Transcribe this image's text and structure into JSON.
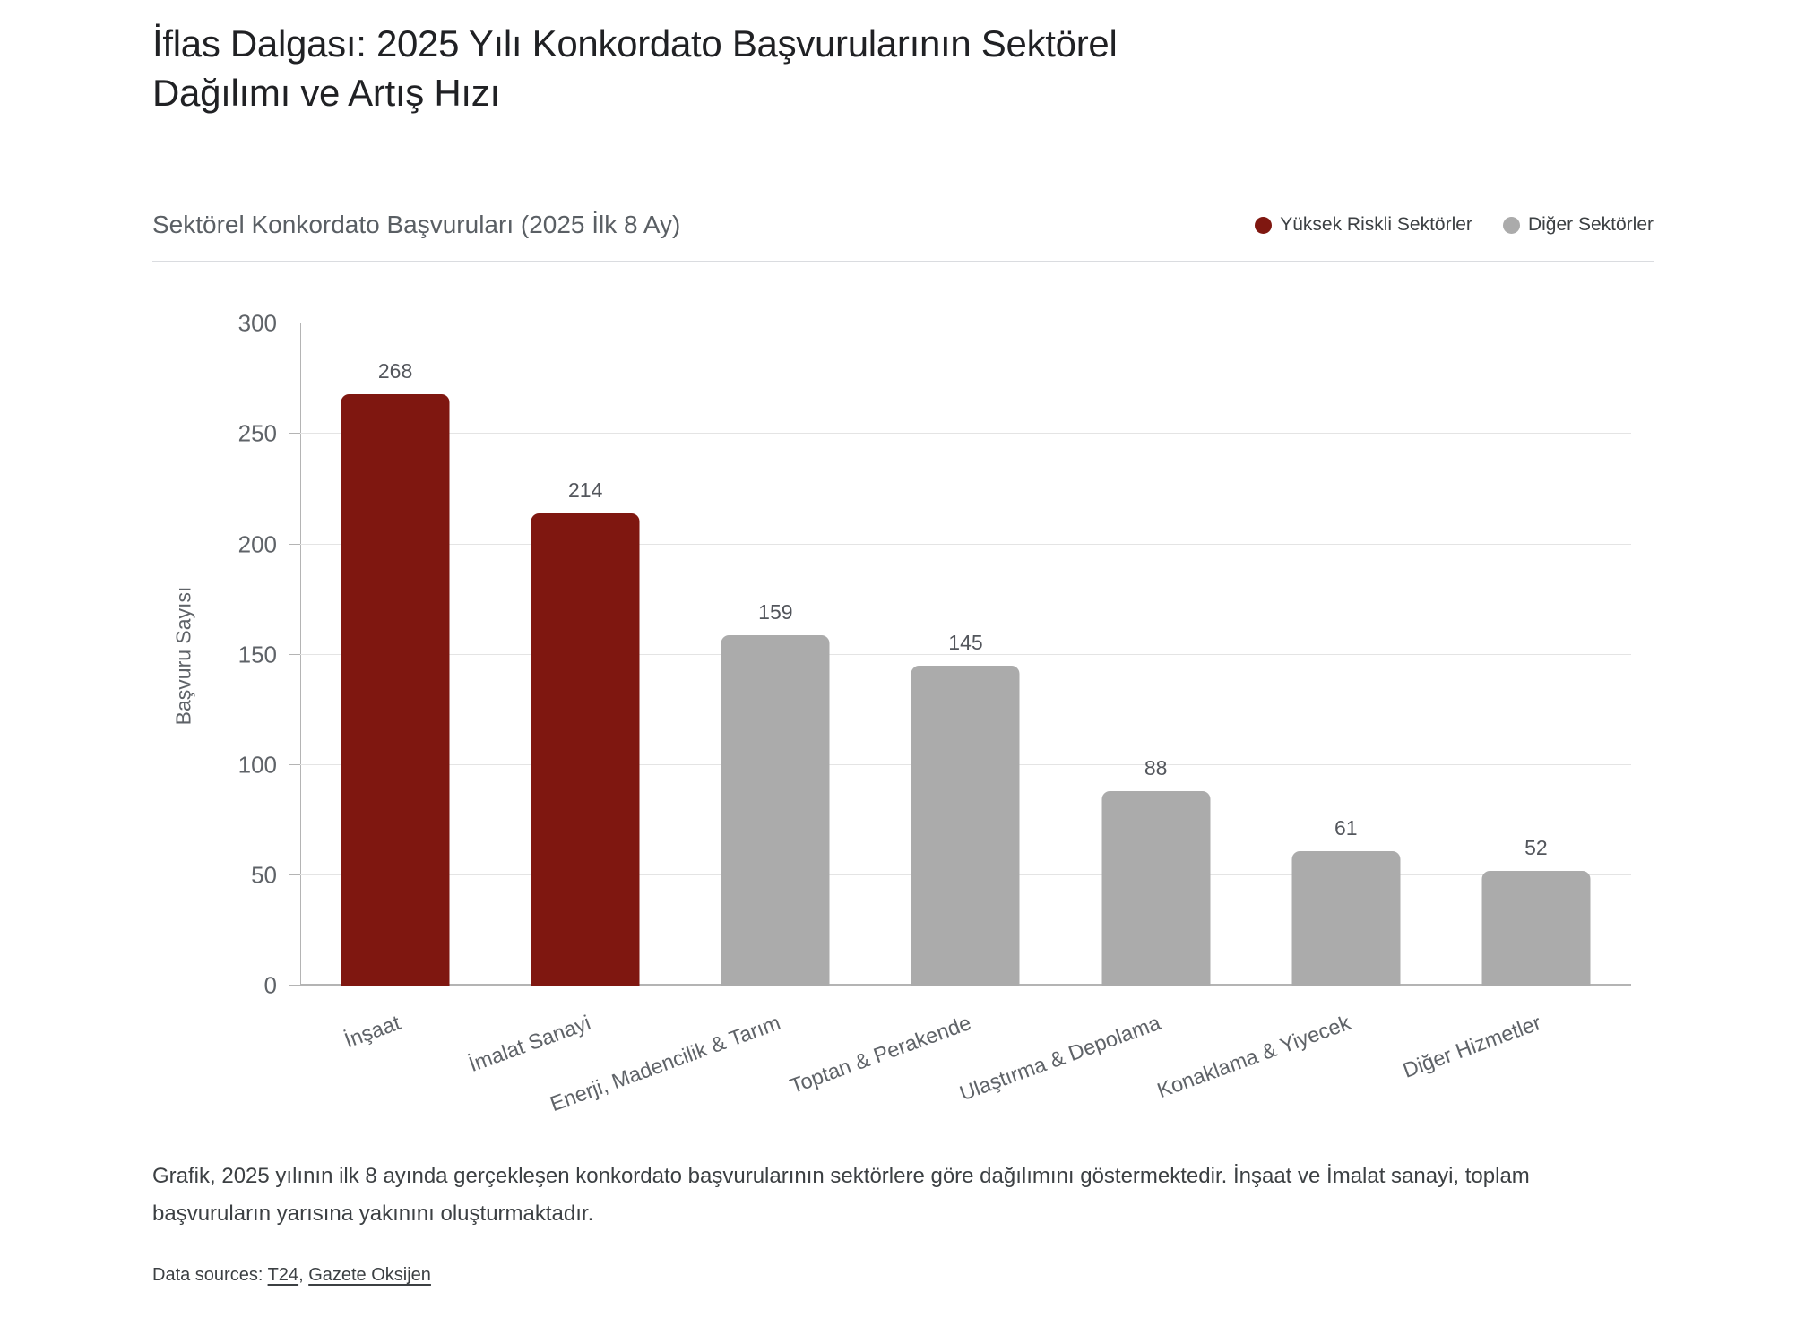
{
  "page": {
    "title": "İflas Dalgası: 2025 Yılı Konkordato Başvurularının Sektörel Dağılımı ve Artış Hızı",
    "caption": "Grafik, 2025 yılının ilk 8 ayında gerçekleşen konkordato başvurularının sektörlere göre dağılımını göstermektedir. İnşaat ve İmalat sanayi, toplam başvuruların yarısına yakınını oluşturmaktadır.",
    "sources": {
      "prefix": "Data sources: ",
      "separator": ", ",
      "links": [
        {
          "label": "T24"
        },
        {
          "label": "Gazete Oksijen"
        }
      ]
    }
  },
  "chart_data": {
    "type": "bar",
    "title": "Sektörel Konkordato Başvuruları (2025 İlk 8 Ay)",
    "categories": [
      "İnşaat",
      "İmalat Sanayi",
      "Enerji, Madencilik & Tarım",
      "Toptan & Perakende",
      "Ulaştırma & Depolama",
      "Konaklama & Yiyecek",
      "Diğer Hizmetler"
    ],
    "values": [
      268,
      214,
      159,
      145,
      88,
      61,
      52
    ],
    "groups": [
      "high-risk",
      "high-risk",
      "other",
      "other",
      "other",
      "other",
      "other"
    ],
    "series_colors": [
      "#7F1710",
      "#7F1710",
      "#ABABAB",
      "#ABABAB",
      "#ABABAB",
      "#ABABAB",
      "#ABABAB"
    ],
    "xlabel": "",
    "ylabel": "Başvuru Sayısı",
    "ylim": [
      0,
      300
    ],
    "yticks": [
      0,
      50,
      100,
      150,
      200,
      250,
      300
    ],
    "grid": true,
    "legend": {
      "position": "top-right",
      "items": [
        {
          "label": "Yüksek Riskli Sektörler",
          "color": "#7F1710"
        },
        {
          "label": "Diğer Sektörler",
          "color": "#ABABAB"
        }
      ]
    }
  }
}
